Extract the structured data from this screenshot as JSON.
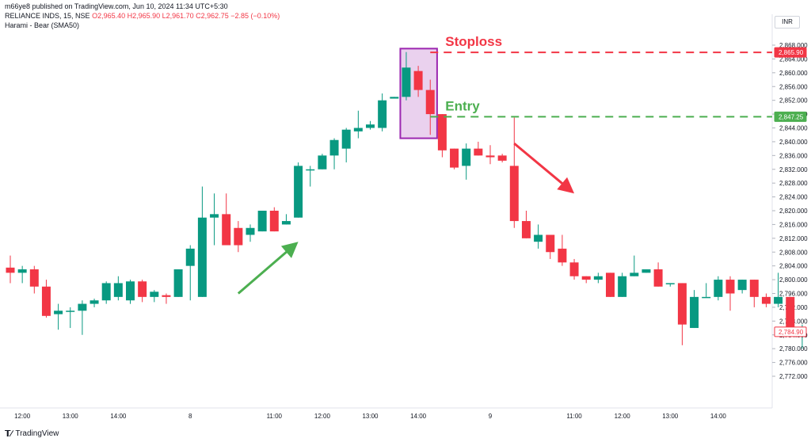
{
  "header": {
    "published": "m66ye8 published on TradingView.com, Jun 10, 2024 11:34 UTC+5:30",
    "symbol": "RELIANCE INDS, 15, NSE",
    "ohlc": "O2,965.40 H2,965.90 L2,961.70 C2,962.75 −2.85 (−0.10%)",
    "indicator": "Harami - Bear (SMA50)"
  },
  "currency": "INR",
  "footer": {
    "brand": "TradingView"
  },
  "colors": {
    "up": "#089981",
    "down": "#f23645",
    "stoploss": "#f23645",
    "entry": "#4caf50",
    "box": "#9c27b0",
    "box_fill": "#e1bee7"
  },
  "chart_data": {
    "type": "candlestick",
    "ylim": [
      2768,
      2872
    ],
    "y_ticks": [
      2772,
      2776,
      2780,
      2784,
      2788,
      2792,
      2796,
      2800,
      2804,
      2808,
      2812,
      2816,
      2820,
      2824,
      2828,
      2832,
      2836,
      2840,
      2844,
      2848,
      2852,
      2856,
      2860,
      2864,
      2868
    ],
    "x_ticks": [
      {
        "index": 1,
        "label": "12:00"
      },
      {
        "index": 5,
        "label": "13:00"
      },
      {
        "index": 9,
        "label": "14:00"
      },
      {
        "index": 15,
        "label": "8"
      },
      {
        "index": 22,
        "label": "11:00"
      },
      {
        "index": 26,
        "label": "12:00"
      },
      {
        "index": 30,
        "label": "13:00"
      },
      {
        "index": 34,
        "label": "14:00"
      },
      {
        "index": 40,
        "label": "9"
      },
      {
        "index": 47,
        "label": "11:00"
      },
      {
        "index": 51,
        "label": "12:00"
      },
      {
        "index": 55,
        "label": "13:00"
      },
      {
        "index": 59,
        "label": "14:00"
      }
    ],
    "candles": [
      {
        "o": 2803.5,
        "h": 2807,
        "l": 2799,
        "c": 2802
      },
      {
        "o": 2802,
        "h": 2804,
        "l": 2799,
        "c": 2803
      },
      {
        "o": 2803,
        "h": 2804,
        "l": 2796,
        "c": 2798
      },
      {
        "o": 2798,
        "h": 2800,
        "l": 2789,
        "c": 2789.5
      },
      {
        "o": 2790,
        "h": 2793,
        "l": 2785.5,
        "c": 2791
      },
      {
        "o": 2791,
        "h": 2792,
        "l": 2786,
        "c": 2791
      },
      {
        "o": 2791,
        "h": 2794,
        "l": 2784,
        "c": 2793
      },
      {
        "o": 2793,
        "h": 2794.5,
        "l": 2792,
        "c": 2794
      },
      {
        "o": 2794,
        "h": 2799.5,
        "l": 2793,
        "c": 2799
      },
      {
        "o": 2795,
        "h": 2801,
        "l": 2794,
        "c": 2799
      },
      {
        "o": 2794,
        "h": 2800,
        "l": 2793,
        "c": 2799.5
      },
      {
        "o": 2799.5,
        "h": 2800,
        "l": 2793.5,
        "c": 2795
      },
      {
        "o": 2795,
        "h": 2797,
        "l": 2793.5,
        "c": 2796.5
      },
      {
        "o": 2795.5,
        "h": 2796,
        "l": 2793,
        "c": 2795
      },
      {
        "o": 2795,
        "h": 2803,
        "l": 2795,
        "c": 2803
      },
      {
        "o": 2804,
        "h": 2810,
        "l": 2794,
        "c": 2809
      },
      {
        "o": 2795,
        "h": 2827,
        "l": 2795,
        "c": 2818
      },
      {
        "o": 2818,
        "h": 2825,
        "l": 2810,
        "c": 2819
      },
      {
        "o": 2819,
        "h": 2825,
        "l": 2811,
        "c": 2810
      },
      {
        "o": 2815,
        "h": 2817,
        "l": 2808,
        "c": 2810
      },
      {
        "o": 2813,
        "h": 2816,
        "l": 2811,
        "c": 2815
      },
      {
        "o": 2814,
        "h": 2820,
        "l": 2814,
        "c": 2820
      },
      {
        "o": 2820,
        "h": 2821,
        "l": 2814,
        "c": 2814
      },
      {
        "o": 2816,
        "h": 2819,
        "l": 2816,
        "c": 2817
      },
      {
        "o": 2818,
        "h": 2834,
        "l": 2818,
        "c": 2833
      },
      {
        "o": 2832,
        "h": 2833,
        "l": 2827,
        "c": 2832
      },
      {
        "o": 2832,
        "h": 2836.5,
        "l": 2832,
        "c": 2836
      },
      {
        "o": 2836,
        "h": 2841,
        "l": 2832,
        "c": 2840.5
      },
      {
        "o": 2838,
        "h": 2844,
        "l": 2834,
        "c": 2843.5
      },
      {
        "o": 2843,
        "h": 2849,
        "l": 2841,
        "c": 2844
      },
      {
        "o": 2844,
        "h": 2846,
        "l": 2843.5,
        "c": 2845
      },
      {
        "o": 2844,
        "h": 2854,
        "l": 2843,
        "c": 2852
      },
      {
        "o": 2852.5,
        "h": 2853,
        "l": 2852.5,
        "c": 2853
      },
      {
        "o": 2853,
        "h": 2866,
        "l": 2852,
        "c": 2861.5
      },
      {
        "o": 2860.5,
        "h": 2862,
        "l": 2853,
        "c": 2855
      },
      {
        "o": 2855,
        "h": 2858,
        "l": 2842,
        "c": 2848
      },
      {
        "o": 2848,
        "h": 2848,
        "l": 2835.5,
        "c": 2837.5
      },
      {
        "o": 2838,
        "h": 2838,
        "l": 2832,
        "c": 2832.5
      },
      {
        "o": 2833,
        "h": 2839.5,
        "l": 2829,
        "c": 2838
      },
      {
        "o": 2838,
        "h": 2840,
        "l": 2836,
        "c": 2836
      },
      {
        "o": 2836,
        "h": 2839,
        "l": 2833.5,
        "c": 2835.5
      },
      {
        "o": 2836,
        "h": 2836.5,
        "l": 2834,
        "c": 2834.5
      },
      {
        "o": 2833,
        "h": 2847,
        "l": 2815,
        "c": 2817
      },
      {
        "o": 2817,
        "h": 2820,
        "l": 2812,
        "c": 2812
      },
      {
        "o": 2811,
        "h": 2816,
        "l": 2809,
        "c": 2813
      },
      {
        "o": 2813,
        "h": 2813,
        "l": 2806,
        "c": 2808
      },
      {
        "o": 2809,
        "h": 2813,
        "l": 2804,
        "c": 2805
      },
      {
        "o": 2805,
        "h": 2806,
        "l": 2800,
        "c": 2801
      },
      {
        "o": 2801,
        "h": 2801,
        "l": 2799,
        "c": 2800
      },
      {
        "o": 2800,
        "h": 2802,
        "l": 2799,
        "c": 2801
      },
      {
        "o": 2802,
        "h": 2802,
        "l": 2795,
        "c": 2795
      },
      {
        "o": 2795,
        "h": 2802,
        "l": 2795,
        "c": 2801
      },
      {
        "o": 2801,
        "h": 2807,
        "l": 2801,
        "c": 2802
      },
      {
        "o": 2802,
        "h": 2803,
        "l": 2802,
        "c": 2803
      },
      {
        "o": 2803,
        "h": 2805,
        "l": 2798,
        "c": 2798
      },
      {
        "o": 2799,
        "h": 2799,
        "l": 2798,
        "c": 2799
      },
      {
        "o": 2799,
        "h": 2799,
        "l": 2781,
        "c": 2787
      },
      {
        "o": 2786,
        "h": 2797,
        "l": 2786,
        "c": 2795
      },
      {
        "o": 2795,
        "h": 2799,
        "l": 2795,
        "c": 2795
      },
      {
        "o": 2795,
        "h": 2801,
        "l": 2794,
        "c": 2800
      },
      {
        "o": 2800,
        "h": 2801,
        "l": 2791,
        "c": 2796
      },
      {
        "o": 2797,
        "h": 2800,
        "l": 2796,
        "c": 2800
      },
      {
        "o": 2800,
        "h": 2800,
        "l": 2792,
        "c": 2795
      },
      {
        "o": 2795,
        "h": 2796,
        "l": 2792,
        "c": 2793
      },
      {
        "o": 2793,
        "h": 2802,
        "l": 2792,
        "c": 2795
      },
      {
        "o": 2795,
        "h": 2795,
        "l": 2786,
        "c": 2786
      },
      {
        "o": 2785,
        "h": 2787,
        "l": 2780,
        "c": 2785
      }
    ],
    "price_labels": [
      {
        "value": 2865.9,
        "text": "2,865.90",
        "color": "#f23645"
      },
      {
        "value": 2847.25,
        "text": "2,847.25",
        "color": "#4caf50"
      },
      {
        "value": 2784.9,
        "text": "2,784.90",
        "color": "#f23645",
        "outline": true
      }
    ],
    "annotations": [
      {
        "kind": "hline",
        "name": "stoploss-line",
        "value": 2865.9,
        "from_index": 35,
        "color": "#f23645",
        "label": "Stoploss"
      },
      {
        "kind": "hline",
        "name": "entry-line",
        "value": 2847.25,
        "from_index": 35,
        "color": "#4caf50",
        "label": "Entry"
      },
      {
        "kind": "box",
        "name": "harami-box",
        "from_index": 33,
        "to_index": 36,
        "top": 2867,
        "bottom": 2841
      },
      {
        "kind": "arrow",
        "name": "up-arrow",
        "color": "#4caf50",
        "from": [
          19,
          2796
        ],
        "to": [
          24,
          2811
        ]
      },
      {
        "kind": "arrow",
        "name": "down-arrow",
        "color": "#f23645",
        "from": [
          42,
          2839.5
        ],
        "to": [
          47,
          2825
        ]
      }
    ]
  }
}
